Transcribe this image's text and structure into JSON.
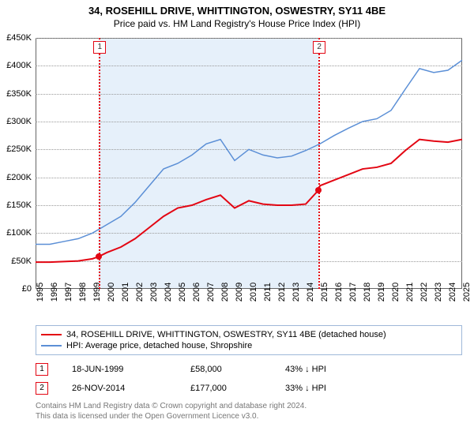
{
  "title": "34, ROSEHILL DRIVE, WHITTINGTON, OSWESTRY, SY11 4BE",
  "subtitle": "Price paid vs. HM Land Registry's House Price Index (HPI)",
  "chart": {
    "type": "line",
    "background_color": "#ffffff",
    "grid_color": "#999999",
    "border_color": "#666666",
    "highlight_color": "#e6f0fa",
    "xlim": [
      1995,
      2025
    ],
    "ylim": [
      0,
      450000
    ],
    "ytick_step": 50000,
    "yticks": [
      "£0",
      "£50K",
      "£100K",
      "£150K",
      "£200K",
      "£250K",
      "£300K",
      "£350K",
      "£400K",
      "£450K"
    ],
    "xticks": [
      1995,
      1996,
      1997,
      1998,
      1999,
      2000,
      2001,
      2002,
      2003,
      2004,
      2005,
      2006,
      2007,
      2008,
      2009,
      2010,
      2011,
      2012,
      2013,
      2014,
      2015,
      2016,
      2017,
      2018,
      2019,
      2020,
      2021,
      2022,
      2023,
      2024,
      2025
    ],
    "highlight_band": {
      "from": 1999.46,
      "to": 2014.9
    },
    "series": [
      {
        "name": "price_paid",
        "color": "#e30613",
        "width": 2,
        "points": [
          [
            1995,
            48000
          ],
          [
            1996,
            48000
          ],
          [
            1997,
            49000
          ],
          [
            1998,
            50000
          ],
          [
            1999,
            54000
          ],
          [
            1999.46,
            58000
          ],
          [
            2000,
            65000
          ],
          [
            2001,
            75000
          ],
          [
            2002,
            90000
          ],
          [
            2003,
            110000
          ],
          [
            2004,
            130000
          ],
          [
            2005,
            145000
          ],
          [
            2006,
            150000
          ],
          [
            2007,
            160000
          ],
          [
            2008,
            168000
          ],
          [
            2009,
            145000
          ],
          [
            2010,
            158000
          ],
          [
            2011,
            152000
          ],
          [
            2012,
            150000
          ],
          [
            2013,
            150000
          ],
          [
            2014,
            152000
          ],
          [
            2014.9,
            177000
          ],
          [
            2015,
            185000
          ],
          [
            2016,
            195000
          ],
          [
            2017,
            205000
          ],
          [
            2018,
            215000
          ],
          [
            2019,
            218000
          ],
          [
            2020,
            225000
          ],
          [
            2021,
            248000
          ],
          [
            2022,
            268000
          ],
          [
            2023,
            265000
          ],
          [
            2024,
            263000
          ],
          [
            2025,
            268000
          ]
        ]
      },
      {
        "name": "hpi",
        "color": "#5b8fd6",
        "width": 1.5,
        "points": [
          [
            1995,
            80000
          ],
          [
            1996,
            80000
          ],
          [
            1997,
            85000
          ],
          [
            1998,
            90000
          ],
          [
            1999,
            100000
          ],
          [
            2000,
            115000
          ],
          [
            2001,
            130000
          ],
          [
            2002,
            155000
          ],
          [
            2003,
            185000
          ],
          [
            2004,
            215000
          ],
          [
            2005,
            225000
          ],
          [
            2006,
            240000
          ],
          [
            2007,
            260000
          ],
          [
            2008,
            268000
          ],
          [
            2009,
            230000
          ],
          [
            2010,
            250000
          ],
          [
            2011,
            240000
          ],
          [
            2012,
            235000
          ],
          [
            2013,
            238000
          ],
          [
            2014,
            248000
          ],
          [
            2015,
            260000
          ],
          [
            2016,
            275000
          ],
          [
            2017,
            288000
          ],
          [
            2018,
            300000
          ],
          [
            2019,
            305000
          ],
          [
            2020,
            320000
          ],
          [
            2021,
            358000
          ],
          [
            2022,
            395000
          ],
          [
            2023,
            388000
          ],
          [
            2024,
            392000
          ],
          [
            2025,
            410000
          ]
        ]
      }
    ],
    "markers": [
      {
        "id": "1",
        "x": 1999.46,
        "y": 58000,
        "color": "#e30613"
      },
      {
        "id": "2",
        "x": 2014.9,
        "y": 177000,
        "color": "#e30613"
      }
    ]
  },
  "legend": {
    "items": [
      {
        "color": "#e30613",
        "label": "34, ROSEHILL DRIVE, WHITTINGTON, OSWESTRY, SY11 4BE (detached house)"
      },
      {
        "color": "#5b8fd6",
        "label": "HPI: Average price, detached house, Shropshire"
      }
    ]
  },
  "sales": [
    {
      "id": "1",
      "box_color": "#e30613",
      "date": "18-JUN-1999",
      "price": "£58,000",
      "pct": "43% ↓ HPI"
    },
    {
      "id": "2",
      "box_color": "#e30613",
      "date": "26-NOV-2014",
      "price": "£177,000",
      "pct": "33% ↓ HPI"
    }
  ],
  "footnote_line1": "Contains HM Land Registry data © Crown copyright and database right 2024.",
  "footnote_line2": "This data is licensed under the Open Government Licence v3.0."
}
